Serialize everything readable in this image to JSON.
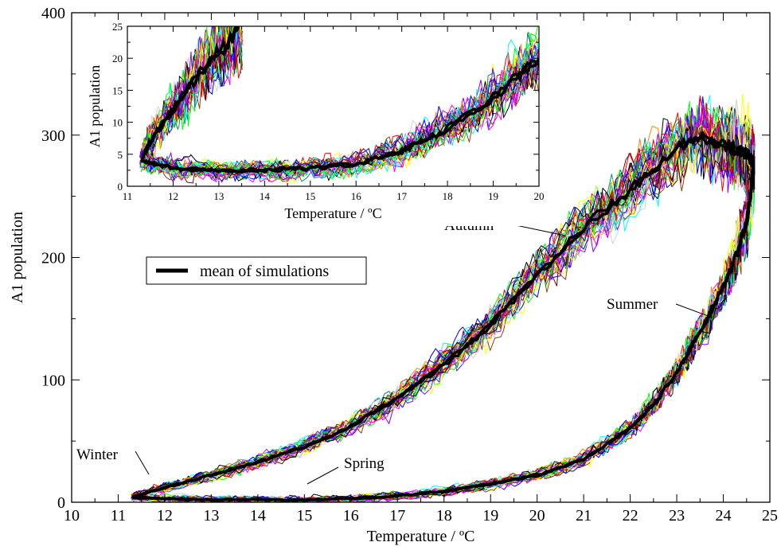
{
  "chart_data": [
    {
      "type": "line",
      "xlabel": "Temperature / ºC",
      "ylabel": "A1 population",
      "xlim": [
        10,
        25
      ],
      "ylim": [
        0,
        400
      ],
      "xticks": [
        "10",
        "11",
        "12",
        "13",
        "14",
        "15",
        "16",
        "17",
        "18",
        "19",
        "20",
        "21",
        "22",
        "23",
        "24",
        "25"
      ],
      "yticks": [
        "0",
        "100",
        "200",
        "300",
        "400"
      ],
      "grid": false,
      "legend": {
        "placement": "center-left",
        "entries": [
          "mean of simulations"
        ]
      },
      "annotations": [
        {
          "text": "Autumn",
          "x": 21.5,
          "y": 218
        },
        {
          "text": "Summer",
          "x": 24.2,
          "y": 155
        },
        {
          "text": "Winter",
          "x": 11.9,
          "y": 20
        },
        {
          "text": "Spring",
          "x": 15.0,
          "y": 8
        }
      ],
      "series": [
        {
          "name": "mean of simulations",
          "x": [
            11.3,
            12,
            13,
            14,
            15,
            16,
            17,
            18,
            19,
            20,
            21,
            22,
            22.5,
            23,
            23.5,
            24,
            24.3,
            24.5,
            24.6,
            24.65,
            24.6,
            24.5,
            24.3,
            24,
            23.5,
            23,
            22,
            21,
            20,
            19,
            18,
            17,
            16,
            15,
            14,
            13,
            12,
            11.3
          ],
          "values": [
            4,
            3,
            2,
            2,
            2,
            3,
            5,
            9,
            15,
            22,
            35,
            60,
            80,
            105,
            140,
            175,
            205,
            230,
            255,
            275,
            280,
            285,
            288,
            292,
            298,
            290,
            255,
            225,
            185,
            145,
            112,
            85,
            62,
            45,
            33,
            22,
            12,
            4
          ]
        }
      ],
      "simulation_colors": [
        "#ff00ff",
        "#0000ff",
        "#00ffff",
        "#00ff00",
        "#ff0000",
        "#8b00ff",
        "#ffff00",
        "#8b4513",
        "#d3d3d3",
        "#000000",
        "#ff8800",
        "#008b8b",
        "#7b0000"
      ]
    },
    {
      "type": "line",
      "role": "inset",
      "xlabel": "Temperature / ºC",
      "ylabel": "A1 population",
      "xlim": [
        11,
        20
      ],
      "ylim": [
        0,
        25
      ],
      "xticks": [
        "11",
        "12",
        "13",
        "14",
        "15",
        "16",
        "17",
        "18",
        "19",
        "20"
      ],
      "yticks": [
        "0",
        "5",
        "10",
        "15",
        "20",
        "25"
      ],
      "series": [
        {
          "name": "mean of simulations",
          "x": [
            11.3,
            12,
            13,
            14,
            15,
            16,
            17,
            18,
            19,
            20
          ],
          "values": [
            4,
            2.8,
            2.4,
            2.5,
            2.8,
            3.5,
            5.5,
            9,
            14,
            20
          ]
        },
        {
          "name": "mean of simulations",
          "x": [
            11.3,
            11.5,
            12,
            12.5,
            13,
            13.5
          ],
          "values": [
            4,
            7,
            12,
            17,
            21,
            25
          ]
        }
      ]
    }
  ]
}
